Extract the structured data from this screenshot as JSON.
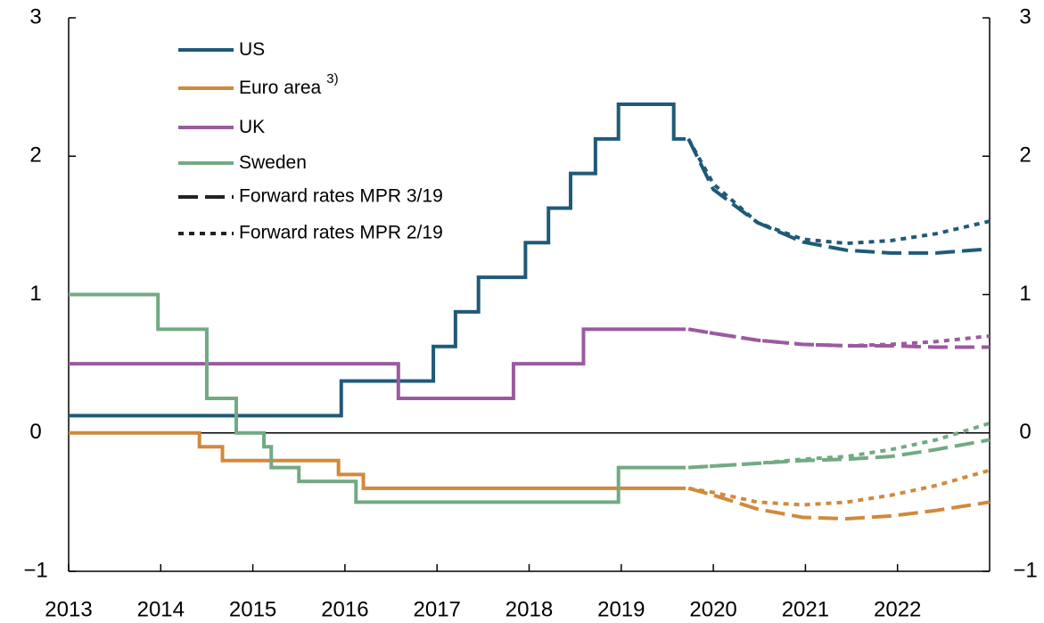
{
  "chart_data": {
    "type": "line",
    "step": "post",
    "xlim": [
      2013,
      2023
    ],
    "xticks": [
      2013,
      2014,
      2015,
      2016,
      2017,
      2018,
      2019,
      2020,
      2021,
      2022
    ],
    "ylim": [
      -1,
      3
    ],
    "yticks": [
      {
        "value": -1,
        "label": "−1"
      },
      0,
      1,
      2,
      3
    ],
    "series": [
      {
        "name": "US",
        "color": "#1f5a78",
        "x": [
          2013,
          2015.96,
          2016.96,
          2017.2,
          2017.45,
          2017.96,
          2018.21,
          2018.45,
          2018.72,
          2018.97,
          2019.57,
          2019.7
        ],
        "values": [
          0.125,
          0.375,
          0.625,
          0.875,
          1.125,
          1.375,
          1.625,
          1.875,
          2.125,
          2.375,
          2.125,
          2.125
        ],
        "forward": [
          {
            "x": [
              2019.73,
              2020.0,
              2020.48,
              2020.97,
              2021.45,
              2021.93,
              2022.42,
              2023.0
            ],
            "values": [
              2.125,
              1.76,
              1.52,
              1.38,
              1.32,
              1.3,
              1.3,
              1.33
            ]
          },
          {
            "x": [
              2019.73,
              2020.0,
              2020.48,
              2020.97,
              2021.45,
              2021.93,
              2022.42,
              2023.0
            ],
            "values": [
              2.125,
              1.8,
              1.52,
              1.4,
              1.37,
              1.39,
              1.44,
              1.53
            ]
          }
        ]
      },
      {
        "name": "Euro area",
        "superscript": "3)",
        "color": "#d08a3c",
        "x": [
          2013,
          2014.42,
          2014.67,
          2015.93,
          2016.2,
          2019.7
        ],
        "values": [
          0,
          -0.1,
          -0.2,
          -0.3,
          -0.4,
          -0.4
        ],
        "forward": [
          {
            "x": [
              2019.73,
              2020.0,
              2020.48,
              2020.97,
              2021.45,
              2021.93,
              2022.42,
              2023.0
            ],
            "values": [
              -0.4,
              -0.45,
              -0.55,
              -0.61,
              -0.62,
              -0.6,
              -0.56,
              -0.5
            ]
          },
          {
            "x": [
              2019.73,
              2020.0,
              2020.48,
              2020.97,
              2021.45,
              2021.93,
              2022.42,
              2023.0
            ],
            "values": [
              -0.4,
              -0.43,
              -0.5,
              -0.52,
              -0.5,
              -0.45,
              -0.38,
              -0.27
            ]
          }
        ]
      },
      {
        "name": "UK",
        "color": "#9b5aa0",
        "x": [
          2013,
          2016.58,
          2017.83,
          2018.59,
          2019.7
        ],
        "values": [
          0.5,
          0.25,
          0.5,
          0.75,
          0.75
        ],
        "forward": [
          {
            "x": [
              2019.73,
              2020.0,
              2020.48,
              2020.97,
              2021.45,
              2021.93,
              2022.42,
              2023.0
            ],
            "values": [
              0.75,
              0.72,
              0.67,
              0.64,
              0.63,
              0.63,
              0.62,
              0.62
            ]
          },
          {
            "x": [
              2019.73,
              2020.0,
              2020.48,
              2020.97,
              2021.45,
              2021.93,
              2022.42,
              2023.0
            ],
            "values": [
              0.75,
              0.72,
              0.67,
              0.64,
              0.63,
              0.64,
              0.66,
              0.7
            ]
          }
        ]
      },
      {
        "name": "Sweden",
        "color": "#72aa83",
        "x": [
          2013,
          2013.97,
          2014.5,
          2014.82,
          2015.12,
          2015.2,
          2015.5,
          2016.12,
          2018.97,
          2019.7
        ],
        "values": [
          1,
          0.75,
          0.25,
          0,
          -0.1,
          -0.25,
          -0.35,
          -0.5,
          -0.25,
          -0.25
        ],
        "forward": [
          {
            "x": [
              2019.73,
              2020.48,
              2020.97,
              2021.45,
              2021.93,
              2022.42,
              2023.0
            ],
            "values": [
              -0.25,
              -0.22,
              -0.2,
              -0.19,
              -0.17,
              -0.12,
              -0.05
            ]
          },
          {
            "x": [
              2019.73,
              2020.48,
              2020.97,
              2021.45,
              2021.93,
              2022.42,
              2023.0
            ],
            "values": [
              -0.25,
              -0.22,
              -0.19,
              -0.17,
              -0.12,
              -0.05,
              0.07
            ]
          }
        ]
      }
    ],
    "forward_legend": [
      {
        "name": "Forward rates MPR 3/19",
        "dash": "dashed"
      },
      {
        "name": "Forward rates MPR 2/19",
        "dash": "dotted"
      }
    ]
  }
}
